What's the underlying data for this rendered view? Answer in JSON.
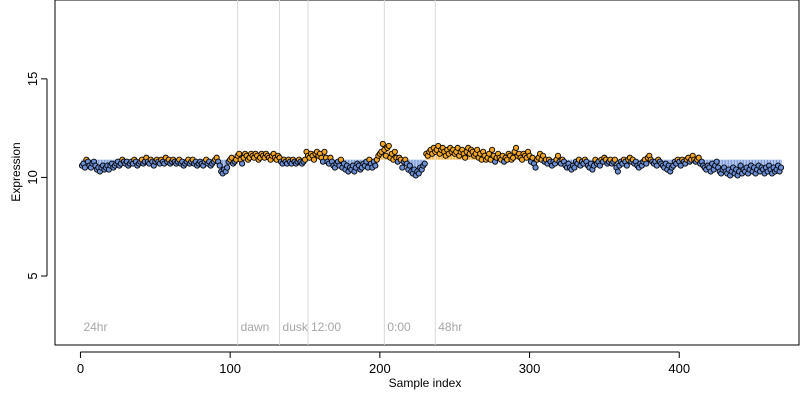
{
  "chart_data": {
    "type": "scatter",
    "title": "",
    "xlabel": "Sample index",
    "ylabel": "Expression",
    "xlim": [
      -17,
      480
    ],
    "ylim": [
      1.5,
      19
    ],
    "x_ticks": [
      0,
      100,
      200,
      300,
      400
    ],
    "y_ticks": [
      5,
      10,
      15
    ],
    "baseline": 10.9,
    "grid": false,
    "colors": {
      "above": "#f5a623",
      "below": "#6b8fd6",
      "point_stroke": "#000000",
      "divider": "#d9d9d9",
      "section_label": "#a6a6a6"
    },
    "sections": [
      {
        "label": "24hr",
        "start": 0
      },
      {
        "label": "dawn",
        "start": 105
      },
      {
        "label": "dusk",
        "start": 133
      },
      {
        "label": "12:00",
        "start": 152
      },
      {
        "label": "0:00",
        "start": 203
      },
      {
        "label": "48hr",
        "start": 237
      }
    ],
    "y_values": [
      10.6,
      10.7,
      10.5,
      10.9,
      10.8,
      10.6,
      10.5,
      10.7,
      10.8,
      10.6,
      10.4,
      10.5,
      10.3,
      10.5,
      10.6,
      10.4,
      10.5,
      10.6,
      10.4,
      10.6,
      10.7,
      10.5,
      10.6,
      10.7,
      10.8,
      10.6,
      10.7,
      10.9,
      10.8,
      10.7,
      10.8,
      10.6,
      10.7,
      10.8,
      10.7,
      10.9,
      10.8,
      10.6,
      10.7,
      10.8,
      10.9,
      10.7,
      10.8,
      11.0,
      10.8,
      10.7,
      10.9,
      10.8,
      10.6,
      10.8,
      10.9,
      10.8,
      10.7,
      10.9,
      10.8,
      10.7,
      11.0,
      10.8,
      10.9,
      10.7,
      10.8,
      10.9,
      10.8,
      10.7,
      10.8,
      10.9,
      10.7,
      10.8,
      10.6,
      10.7,
      10.8,
      10.9,
      10.7,
      10.8,
      10.9,
      10.7,
      10.8,
      10.6,
      10.7,
      10.8,
      10.7,
      10.6,
      10.8,
      10.9,
      10.7,
      10.8,
      10.6,
      10.7,
      10.8,
      10.9,
      11.0,
      10.8,
      10.6,
      10.3,
      10.2,
      10.4,
      10.3,
      10.5,
      10.8,
      10.9,
      11.0,
      10.7,
      10.8,
      10.9,
      11.1,
      11.2,
      10.9,
      10.7,
      11.0,
      11.2,
      11.1,
      10.9,
      11.0,
      11.2,
      11.1,
      11.0,
      11.2,
      11.1,
      10.9,
      11.0,
      11.2,
      11.1,
      11.0,
      11.2,
      11.1,
      11.0,
      10.9,
      11.1,
      11.2,
      11.0,
      10.9,
      11.1,
      11.0,
      10.8,
      10.7,
      10.9,
      10.8,
      10.7,
      10.9,
      10.8,
      10.7,
      10.9,
      10.8,
      10.7,
      10.8,
      10.9,
      10.8,
      10.7,
      10.8,
      10.9,
      11.3,
      11.1,
      11.0,
      11.2,
      11.1,
      10.9,
      11.2,
      11.3,
      11.1,
      11.2,
      11.0,
      10.8,
      11.3,
      11.0,
      10.8,
      10.7,
      11.0,
      10.8,
      10.6,
      10.5,
      10.7,
      10.8,
      10.6,
      10.9,
      10.5,
      10.7,
      10.4,
      10.6,
      10.3,
      10.5,
      10.4,
      10.6,
      10.3,
      10.5,
      10.7,
      10.6,
      10.4,
      10.5,
      10.7,
      10.6,
      10.8,
      10.5,
      10.9,
      10.7,
      10.5,
      10.8,
      10.6,
      10.9,
      11.1,
      11.2,
      11.3,
      11.7,
      11.4,
      11.1,
      11.5,
      11.6,
      11.0,
      11.2,
      10.9,
      11.3,
      11.0,
      10.8,
      11.0,
      10.9,
      10.5,
      10.8,
      10.9,
      10.7,
      10.4,
      10.6,
      10.3,
      10.2,
      10.4,
      10.1,
      10.3,
      10.2,
      10.5,
      10.4,
      10.6,
      10.7,
      11.2,
      11.1,
      11.3,
      11.4,
      11.2,
      11.5,
      11.3,
      11.4,
      11.6,
      11.2,
      11.4,
      11.5,
      11.3,
      11.1,
      11.4,
      11.2,
      11.5,
      11.3,
      11.4,
      11.2,
      11.3,
      11.5,
      11.1,
      11.3,
      11.4,
      11.2,
      11.0,
      11.3,
      11.5,
      11.2,
      11.4,
      11.3,
      11.1,
      11.2,
      11.4,
      11.0,
      11.2,
      10.9,
      11.3,
      11.1,
      10.9,
      11.0,
      11.2,
      10.9,
      11.4,
      11.1,
      10.8,
      11.0,
      11.2,
      11.0,
      10.9,
      11.1,
      10.8,
      11.0,
      10.9,
      11.2,
      11.1,
      10.9,
      11.0,
      11.3,
      11.5,
      11.1,
      11.2,
      11.0,
      10.9,
      11.2,
      11.1,
      11.0,
      11.3,
      11.1,
      10.8,
      11.0,
      10.7,
      10.5,
      10.9,
      11.0,
      11.2,
      10.9,
      11.1,
      10.8,
      10.9,
      10.7,
      10.9,
      10.8,
      10.6,
      10.8,
      10.7,
      10.9,
      11.1,
      10.8,
      10.7,
      10.9,
      10.8,
      10.6,
      10.5,
      10.7,
      10.5,
      10.4,
      10.6,
      10.5,
      10.8,
      10.7,
      10.9,
      10.6,
      10.8,
      10.7,
      10.9,
      10.8,
      10.6,
      10.5,
      10.7,
      10.4,
      10.6,
      10.9,
      10.7,
      10.8,
      10.6,
      10.9,
      10.8,
      11.0,
      10.9,
      10.7,
      10.8,
      10.9,
      10.7,
      10.8,
      10.9,
      10.5,
      10.3,
      10.6,
      10.8,
      10.7,
      10.9,
      10.8,
      10.6,
      10.9,
      11.0,
      10.8,
      10.9,
      10.7,
      10.8,
      10.6,
      10.5,
      10.7,
      10.6,
      10.8,
      10.9,
      10.7,
      11.0,
      11.1,
      10.9,
      10.8,
      10.7,
      10.8,
      10.6,
      10.9,
      10.8,
      10.7,
      10.6,
      10.5,
      10.7,
      10.4,
      10.6,
      10.3,
      10.5,
      10.6,
      10.8,
      10.7,
      10.9,
      10.8,
      10.6,
      10.9,
      10.8,
      10.7,
      10.9,
      11.0,
      10.8,
      10.9,
      11.1,
      10.9,
      10.8,
      10.9,
      11.0,
      10.7,
      10.8,
      10.6,
      10.5,
      10.4,
      10.6,
      10.5,
      10.3,
      10.7,
      10.4,
      10.6,
      10.8,
      10.5,
      10.3,
      10.2,
      10.4,
      10.5,
      10.3,
      10.2,
      10.4,
      10.1,
      10.3,
      10.5,
      10.2,
      10.4,
      10.1,
      10.3,
      10.6,
      10.2,
      10.4,
      10.3,
      10.5,
      10.2,
      10.4,
      10.6,
      10.3,
      10.5,
      10.2,
      10.4,
      10.6,
      10.3,
      10.5,
      10.4,
      10.2,
      10.5,
      10.3,
      10.6,
      10.4,
      10.2,
      10.5,
      10.3,
      10.4,
      10.6,
      10.3,
      10.5
    ]
  }
}
